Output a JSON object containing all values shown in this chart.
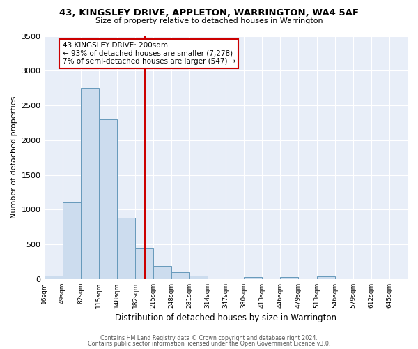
{
  "title": "43, KINGSLEY DRIVE, APPLETON, WARRINGTON, WA4 5AF",
  "subtitle": "Size of property relative to detached houses in Warrington",
  "xlabel": "Distribution of detached houses by size in Warrington",
  "ylabel": "Number of detached properties",
  "bar_color": "#ccdcee",
  "bar_edge_color": "#6699bb",
  "plot_bg_color": "#e8eef8",
  "fig_bg_color": "#ffffff",
  "annotation_box_color": "#ffffff",
  "annotation_border_color": "#cc0000",
  "vline_color": "#cc0000",
  "annotation_line1": "43 KINGSLEY DRIVE: 200sqm",
  "annotation_line2": "← 93% of detached houses are smaller (7,278)",
  "annotation_line3": "7% of semi-detached houses are larger (547) →",
  "property_size": 200,
  "footer1": "Contains HM Land Registry data © Crown copyright and database right 2024.",
  "footer2": "Contains public sector information licensed under the Open Government Licence v3.0.",
  "bins": [
    16,
    49,
    82,
    115,
    148,
    182,
    215,
    248,
    281,
    314,
    347,
    380,
    413,
    446,
    479,
    513,
    546,
    579,
    612,
    645,
    678
  ],
  "counts": [
    50,
    1100,
    2750,
    2300,
    880,
    440,
    190,
    100,
    50,
    5,
    5,
    30,
    5,
    25,
    5,
    35,
    5,
    5,
    5,
    5
  ],
  "ylim": [
    0,
    3500
  ],
  "yticks": [
    0,
    500,
    1000,
    1500,
    2000,
    2500,
    3000,
    3500
  ]
}
